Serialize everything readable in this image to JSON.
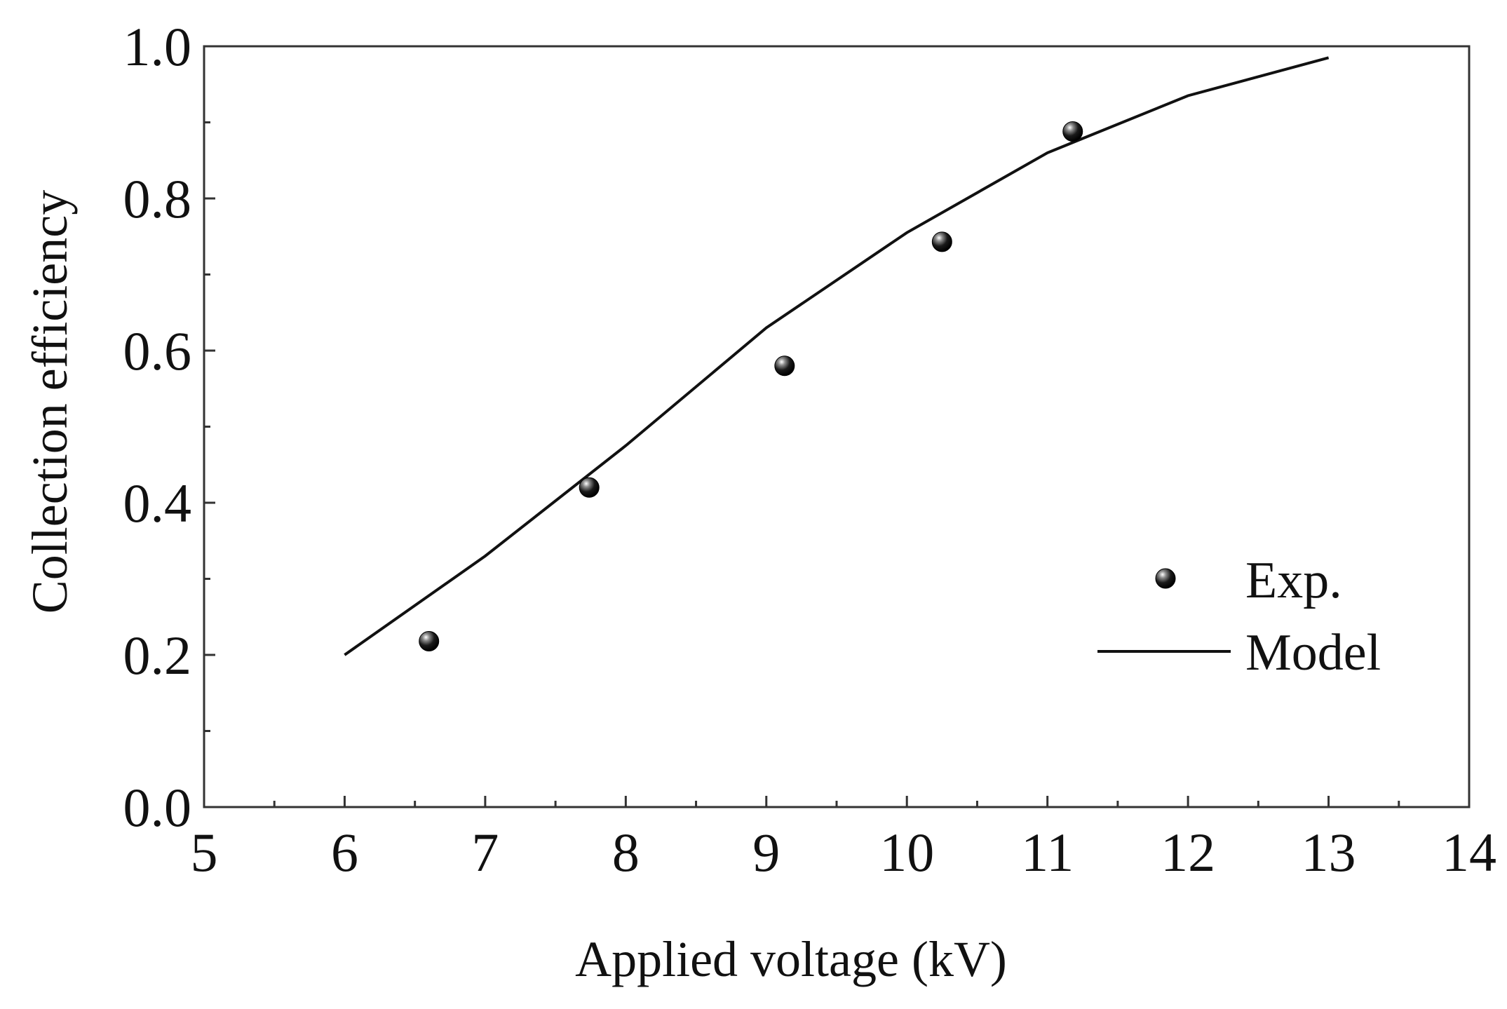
{
  "chart_data": {
    "type": "scatter",
    "xlabel": "Applied voltage (kV)",
    "ylabel": "Collection efficiency",
    "xlim": [
      5,
      14
    ],
    "ylim": [
      0.0,
      1.0
    ],
    "x_ticks": [
      5,
      6,
      7,
      8,
      9,
      10,
      11,
      12,
      13,
      14
    ],
    "x_minor_ticks": [
      5.5,
      6.5,
      7.5,
      8.5,
      9.5,
      10.5,
      11.5,
      12.5,
      13.5
    ],
    "y_ticks": [
      0.0,
      0.2,
      0.4,
      0.6,
      0.8,
      1.0
    ],
    "y_tick_labels": [
      "0.0",
      "0.2",
      "0.4",
      "0.6",
      "0.8",
      "1.0"
    ],
    "y_minor_ticks": [
      0.1,
      0.3,
      0.5,
      0.7,
      0.9
    ],
    "grid": false,
    "legend_position": "lower-right",
    "series": [
      {
        "name": "Exp.",
        "kind": "scatter",
        "color": "#111111",
        "points": [
          {
            "x": 6.6,
            "y": 0.218
          },
          {
            "x": 7.74,
            "y": 0.42
          },
          {
            "x": 9.13,
            "y": 0.58
          },
          {
            "x": 10.25,
            "y": 0.743
          },
          {
            "x": 11.18,
            "y": 0.888
          }
        ]
      },
      {
        "name": "Model",
        "kind": "line",
        "color": "#111111",
        "points": [
          {
            "x": 6.0,
            "y": 0.2
          },
          {
            "x": 7.0,
            "y": 0.33
          },
          {
            "x": 8.0,
            "y": 0.475
          },
          {
            "x": 9.0,
            "y": 0.63
          },
          {
            "x": 10.0,
            "y": 0.755
          },
          {
            "x": 11.0,
            "y": 0.86
          },
          {
            "x": 12.0,
            "y": 0.935
          },
          {
            "x": 13.0,
            "y": 0.985
          }
        ]
      }
    ]
  }
}
